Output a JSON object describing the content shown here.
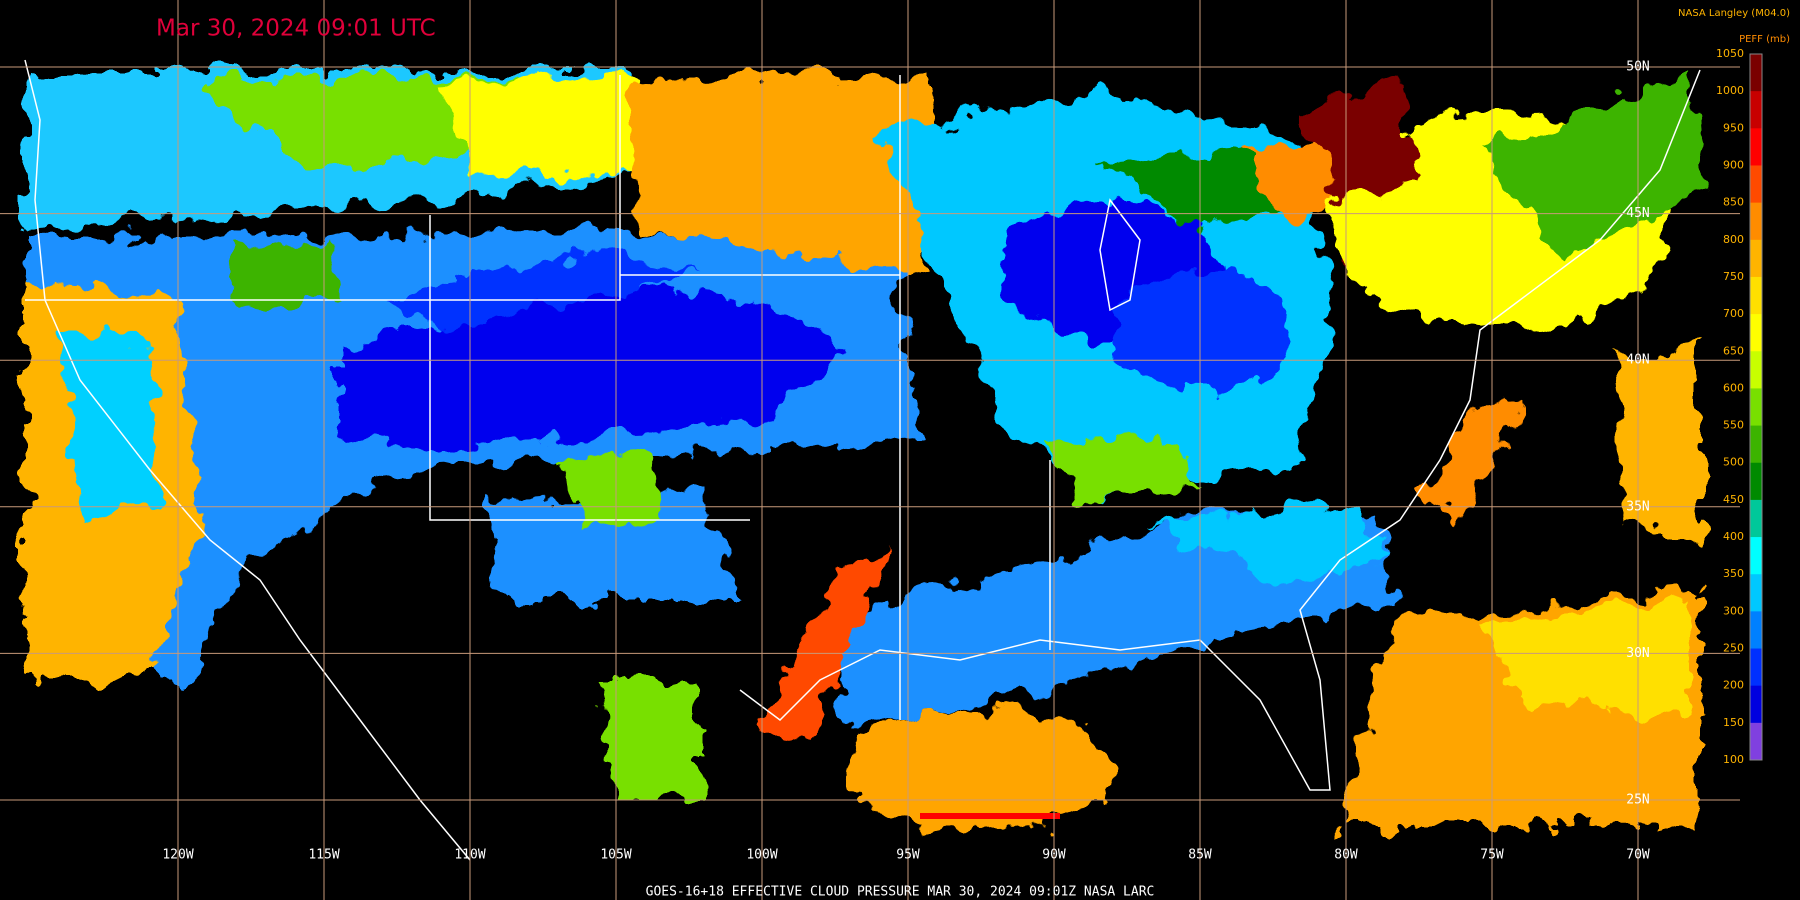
{
  "header": {
    "title": "Mar 30, 2024 09:01 UTC",
    "credit": "NASA Langley (M04.0)"
  },
  "legend": {
    "title": "PEFF (mb)",
    "ticks": [
      1050,
      1000,
      950,
      900,
      850,
      800,
      750,
      700,
      650,
      600,
      550,
      500,
      450,
      400,
      350,
      300,
      250,
      200,
      150,
      100
    ],
    "colors": [
      "#7a0000",
      "#c80000",
      "#ff0000",
      "#ff4a00",
      "#ff8c00",
      "#ffb400",
      "#ffe000",
      "#ffff00",
      "#c8ff00",
      "#78e000",
      "#3cb400",
      "#008a00",
      "#00c89a",
      "#00ffff",
      "#00c8ff",
      "#0080ff",
      "#0030ff",
      "#0000e0",
      "#8040e0"
    ]
  },
  "longitudes": [
    "120W",
    "115W",
    "110W",
    "105W",
    "100W",
    "95W",
    "90W",
    "85W",
    "80W",
    "75W",
    "70W"
  ],
  "latitudes": [
    "50N",
    "45N",
    "40N",
    "35N",
    "30N",
    "25N"
  ],
  "footer": "GOES-16+18  EFFECTIVE CLOUD PRESSURE  MAR 30, 2024 09:01Z  NASA LARC"
}
